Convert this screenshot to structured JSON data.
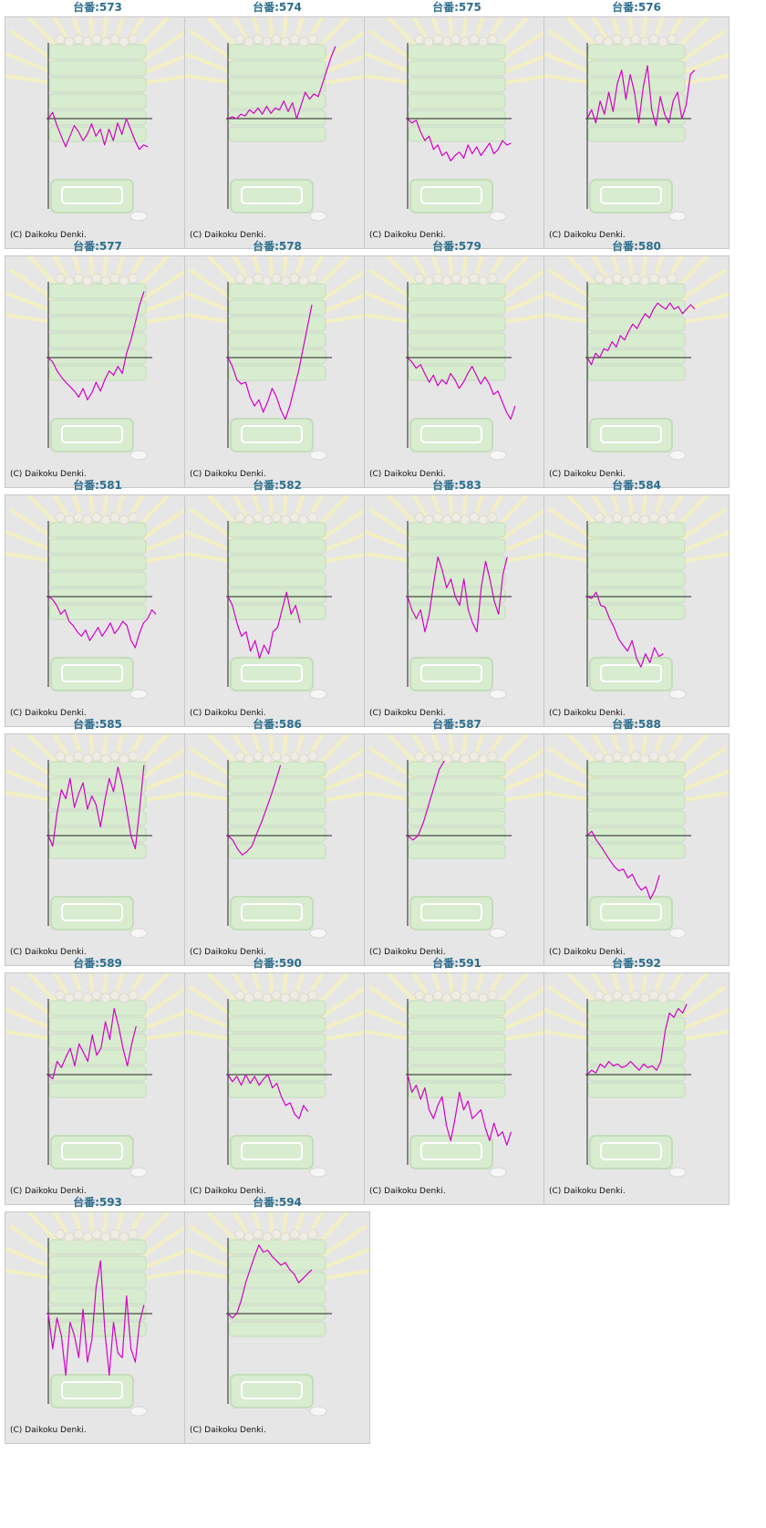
{
  "title_prefix": "台番:",
  "copyright": "(C) Daikoku Denki.",
  "colors": {
    "line": "#d400c8",
    "axis": "#222222",
    "title": "#2d6e8e",
    "panel": "#e6e6e6"
  },
  "chart_data": [
    {
      "type": "line",
      "title": "台番:573",
      "y": [
        0,
        7,
        -8,
        -20,
        -32,
        -20,
        -8,
        -15,
        -25,
        -18,
        -6,
        -20,
        -12,
        -30,
        -12,
        -25,
        -5,
        -18,
        0,
        -12,
        -25,
        -35,
        -30,
        -32
      ]
    },
    {
      "type": "line",
      "title": "台番:574",
      "y": [
        0,
        2,
        0,
        5,
        3,
        10,
        6,
        12,
        5,
        14,
        6,
        12,
        10,
        20,
        8,
        18,
        0,
        15,
        30,
        22,
        28,
        25,
        40,
        55,
        70,
        82
      ]
    },
    {
      "type": "line",
      "title": "台番:575",
      "y": [
        0,
        -5,
        -2,
        -15,
        -25,
        -20,
        -35,
        -30,
        -42,
        -38,
        -48,
        -42,
        -38,
        -45,
        -30,
        -40,
        -32,
        -42,
        -35,
        -28,
        -40,
        -35,
        -25,
        -30,
        -28
      ]
    },
    {
      "type": "line",
      "title": "台番:576",
      "y": [
        0,
        10,
        -5,
        20,
        5,
        30,
        8,
        40,
        55,
        22,
        50,
        30,
        -5,
        35,
        60,
        10,
        -8,
        25,
        5,
        -5,
        20,
        30,
        0,
        15,
        50,
        55
      ]
    },
    {
      "type": "line",
      "title": "台番:577",
      "y": [
        0,
        -5,
        -15,
        -22,
        -28,
        -33,
        -38,
        -45,
        -35,
        -48,
        -40,
        -28,
        -38,
        -25,
        -15,
        -20,
        -10,
        -18,
        5,
        20,
        40,
        60,
        75
      ]
    },
    {
      "type": "line",
      "title": "台番:578",
      "y": [
        0,
        -10,
        -25,
        -30,
        -28,
        -45,
        -55,
        -48,
        -62,
        -50,
        -35,
        -45,
        -60,
        -70,
        -55,
        -35,
        -15,
        10,
        35,
        60
      ]
    },
    {
      "type": "line",
      "title": "台番:579",
      "y": [
        0,
        -5,
        -12,
        -8,
        -18,
        -28,
        -20,
        -32,
        -25,
        -30,
        -18,
        -25,
        -35,
        -28,
        -18,
        -10,
        -20,
        -30,
        -22,
        -30,
        -42,
        -38,
        -50,
        -62,
        -70,
        -55
      ]
    },
    {
      "type": "line",
      "title": "台番:580",
      "y": [
        0,
        -8,
        5,
        0,
        10,
        8,
        18,
        12,
        25,
        20,
        30,
        38,
        33,
        42,
        50,
        45,
        55,
        62,
        58,
        55,
        62,
        55,
        58,
        50,
        55,
        60,
        55
      ]
    },
    {
      "type": "line",
      "title": "台番:581",
      "y": [
        0,
        -3,
        -10,
        -20,
        -15,
        -28,
        -33,
        -40,
        -45,
        -38,
        -50,
        -43,
        -35,
        -45,
        -38,
        -30,
        -42,
        -36,
        -28,
        -33,
        -50,
        -58,
        -42,
        -30,
        -25,
        -15,
        -20
      ]
    },
    {
      "type": "line",
      "title": "台番:582",
      "y": [
        0,
        -10,
        -30,
        -45,
        -40,
        -62,
        -50,
        -70,
        -55,
        -65,
        -40,
        -35,
        -15,
        5,
        -20,
        -10,
        -30
      ]
    },
    {
      "type": "line",
      "title": "台番:583",
      "y": [
        0,
        -15,
        -25,
        -15,
        -40,
        -20,
        15,
        45,
        30,
        10,
        20,
        0,
        -10,
        20,
        -15,
        -30,
        -40,
        10,
        40,
        20,
        -5,
        -20,
        25,
        45
      ]
    },
    {
      "type": "line",
      "title": "台番:584",
      "y": [
        0,
        -2,
        5,
        -10,
        -12,
        -25,
        -35,
        -48,
        -55,
        -62,
        -50,
        -70,
        -80,
        -65,
        -75,
        -58,
        -68,
        -65
      ]
    },
    {
      "type": "line",
      "title": "台番:585",
      "y": [
        0,
        -12,
        25,
        52,
        42,
        65,
        32,
        48,
        60,
        30,
        45,
        35,
        10,
        40,
        65,
        50,
        78,
        58,
        30,
        0,
        -15,
        30,
        80
      ]
    },
    {
      "type": "line",
      "title": "台番:586",
      "y": [
        0,
        -5,
        -15,
        -22,
        -18,
        -12,
        2,
        15,
        30,
        45,
        62,
        80
      ]
    },
    {
      "type": "line",
      "title": "台番:587",
      "y": [
        0,
        -5,
        0,
        15,
        35,
        55,
        75,
        85
      ]
    },
    {
      "type": "line",
      "title": "台番:588",
      "y": [
        0,
        5,
        -5,
        -12,
        -20,
        -28,
        -35,
        -40,
        -38,
        -48,
        -44,
        -55,
        -62,
        -58,
        -72,
        -62,
        -45
      ]
    },
    {
      "type": "line",
      "title": "台番:589",
      "y": [
        0,
        -5,
        15,
        8,
        20,
        30,
        10,
        35,
        25,
        15,
        45,
        22,
        30,
        60,
        40,
        75,
        55,
        30,
        10,
        35,
        55
      ]
    },
    {
      "type": "line",
      "title": "台番:590",
      "y": [
        0,
        -8,
        -2,
        -12,
        0,
        -10,
        -2,
        -12,
        -5,
        0,
        -15,
        -10,
        -25,
        -35,
        -32,
        -45,
        -50,
        -35,
        -42
      ]
    },
    {
      "type": "line",
      "title": "台番:591",
      "y": [
        0,
        -20,
        -12,
        -28,
        -15,
        -40,
        -50,
        -35,
        -25,
        -58,
        -75,
        -50,
        -20,
        -40,
        -30,
        -50,
        -45,
        -40,
        -60,
        -75,
        -55,
        -70,
        -65,
        -80,
        -65
      ]
    },
    {
      "type": "line",
      "title": "台番:592",
      "y": [
        0,
        5,
        2,
        12,
        8,
        15,
        10,
        12,
        8,
        10,
        15,
        10,
        5,
        12,
        8,
        10,
        5,
        15,
        50,
        70,
        65,
        75,
        70,
        80
      ]
    },
    {
      "type": "line",
      "title": "台番:593",
      "y": [
        0,
        -40,
        -5,
        -25,
        -70,
        -10,
        -25,
        -50,
        5,
        -55,
        -30,
        30,
        60,
        -20,
        -70,
        -10,
        -45,
        -50,
        20,
        -40,
        -55,
        -10,
        10
      ]
    },
    {
      "type": "line",
      "title": "台番:594",
      "y": [
        0,
        -5,
        0,
        15,
        35,
        50,
        65,
        78,
        70,
        72,
        65,
        60,
        55,
        58,
        50,
        45,
        35,
        40,
        45,
        50
      ]
    }
  ]
}
